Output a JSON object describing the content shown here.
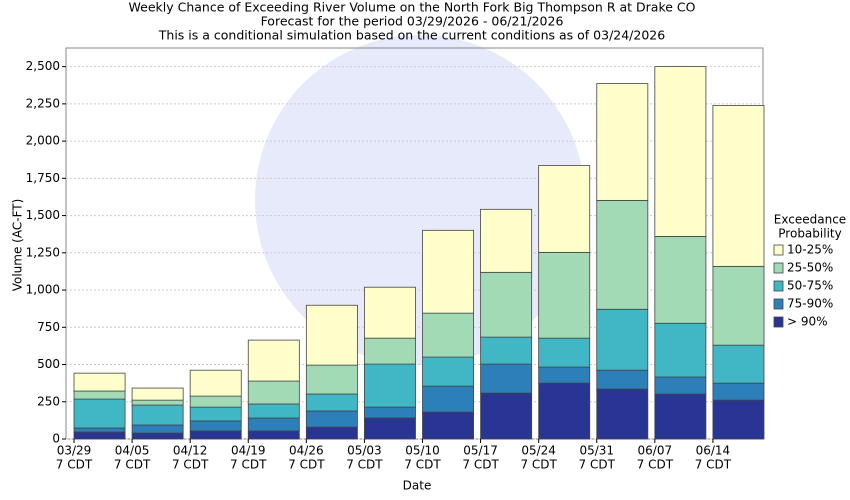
{
  "chart_data": {
    "type": "stacked-bar",
    "title": "Weekly Chance of Exceeding River Volume on the North Fork Big Thompson R at Drake CO",
    "subtitle": "Forecast for the period 03/29/2026 - 06/21/2026",
    "subtitle2": "This is a conditional simulation based on the current conditions as of 03/24/2026",
    "x_label": "Date",
    "y_label": "Volume (AC-FT)",
    "legend_title": [
      "Exceedance",
      "Probability"
    ],
    "categories": [
      "03/29",
      "04/05",
      "04/12",
      "04/19",
      "04/26",
      "05/03",
      "05/10",
      "05/17",
      "05/24",
      "05/31",
      "06/07",
      "06/14"
    ],
    "category_sublabels": [
      "7 CDT",
      "7 CDT",
      "7 CDT",
      "7 CDT",
      "7 CDT",
      "7 CDT",
      "7 CDT",
      "7 CDT",
      "7 CDT",
      "7 CDT",
      "7 CDT",
      "7 CDT"
    ],
    "series": [
      {
        "name": "> 90%",
        "color": "#283593",
        "values": [
          47,
          40,
          54,
          54,
          80,
          141,
          181,
          308,
          375,
          335,
          302,
          261
        ]
      },
      {
        "name": "75-90%",
        "color": "#2c7fb8",
        "values": [
          27,
          54,
          67,
          87,
          108,
          73,
          174,
          195,
          108,
          127,
          114,
          114
        ]
      },
      {
        "name": "50-75%",
        "color": "#41b6c4",
        "values": [
          194,
          134,
          93,
          94,
          114,
          289,
          195,
          181,
          194,
          409,
          361,
          255
        ]
      },
      {
        "name": "25-50%",
        "color": "#a1dab4",
        "values": [
          54,
          33,
          74,
          154,
          194,
          174,
          295,
          435,
          576,
          731,
          583,
          529
        ]
      },
      {
        "name": "10-25%",
        "color": "#ffffcc",
        "values": [
          120,
          81,
          174,
          275,
          402,
          342,
          556,
          423,
          583,
          784,
          1140,
          1080
        ]
      }
    ],
    "ylim": [
      0,
      2625
    ],
    "yticks": [
      0,
      250,
      500,
      750,
      {
        "value": 1000,
        "label": "1,000"
      },
      {
        "value": 1250,
        "label": "1,250"
      },
      {
        "value": 1500,
        "label": "1,500"
      },
      {
        "value": 1750,
        "label": "1,750"
      },
      {
        "value": 2000,
        "label": "2,000"
      },
      {
        "value": 2250,
        "label": "2,250"
      },
      {
        "value": 2500,
        "label": "2,500"
      }
    ],
    "grid": true
  }
}
